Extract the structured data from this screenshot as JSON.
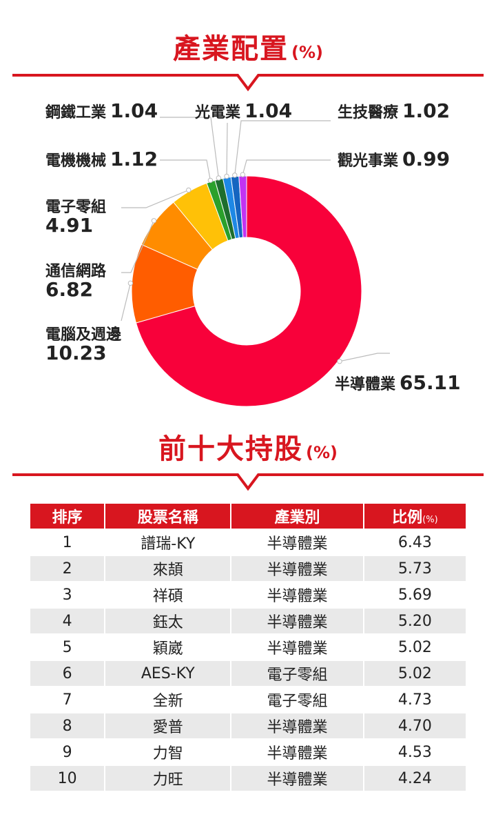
{
  "industry_section": {
    "title": "產業配置",
    "unit": "(%)"
  },
  "holdings_section": {
    "title": "前十大持股",
    "unit": "(%)"
  },
  "colors": {
    "accent": "#d8161f"
  },
  "chart_data": [
    {
      "type": "pie",
      "title": "產業配置",
      "unit": "(%)",
      "slices": [
        {
          "name": "半導體業",
          "value": "65.11",
          "color": "#f8013a"
        },
        {
          "name": "電腦及週邊",
          "value": "10.23",
          "color": "#ff5d00"
        },
        {
          "name": "通信網路",
          "value": "6.82",
          "color": "#ff8c00"
        },
        {
          "name": "電子零組",
          "value": "4.91",
          "color": "#ffc107"
        },
        {
          "name": "電機機械",
          "value": "1.12",
          "color": "#2ba02b"
        },
        {
          "name": "鋼鐵工業",
          "value": "1.04",
          "color": "#1e6e2e"
        },
        {
          "name": "光電業",
          "value": "1.04",
          "color": "#1e88e5"
        },
        {
          "name": "生技醫療",
          "value": "1.02",
          "color": "#1565c0"
        },
        {
          "name": "觀光事業",
          "value": "0.99",
          "color": "#c233f2"
        }
      ]
    },
    {
      "type": "table",
      "title": "前十大持股",
      "unit": "(%)",
      "columns": [
        "排序",
        "股票名稱",
        "產業別",
        "比例"
      ],
      "ratio_unit": "(%)",
      "rows": [
        [
          "1",
          "譜瑞-KY",
          "半導體業",
          "6.43"
        ],
        [
          "2",
          "來頡",
          "半導體業",
          "5.73"
        ],
        [
          "3",
          "祥碩",
          "半導體業",
          "5.69"
        ],
        [
          "4",
          "鈺太",
          "半導體業",
          "5.20"
        ],
        [
          "5",
          "穎崴",
          "半導體業",
          "5.02"
        ],
        [
          "6",
          "AES-KY",
          "電子零組",
          "5.02"
        ],
        [
          "7",
          "全新",
          "電子零組",
          "4.73"
        ],
        [
          "8",
          "愛普",
          "半導體業",
          "4.70"
        ],
        [
          "9",
          "力智",
          "半導體業",
          "4.53"
        ],
        [
          "10",
          "力旺",
          "半導體業",
          "4.24"
        ]
      ]
    }
  ]
}
